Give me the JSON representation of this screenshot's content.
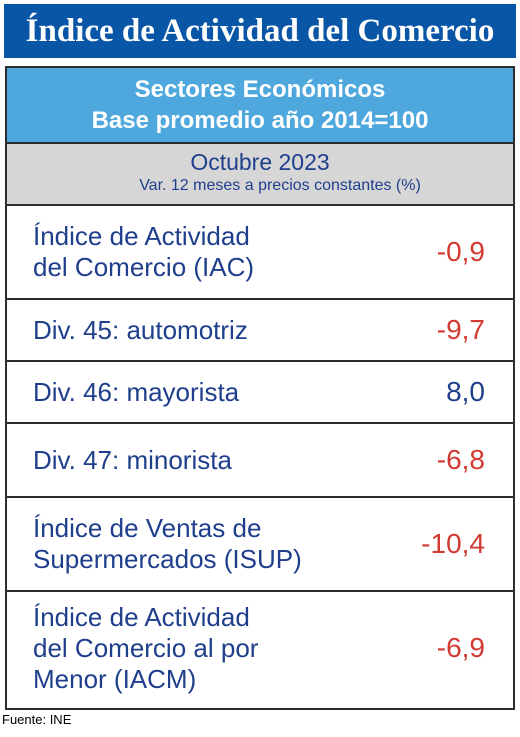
{
  "title": "Índice de Actividad del Comercio",
  "subheader": {
    "line1": "Sectores Económicos",
    "line2": "Base promedio año 2014=100"
  },
  "period": {
    "month": "Octubre 2023",
    "note": "Var. 12 meses a precios constantes (%)"
  },
  "rows": [
    {
      "label": "Índice de Actividad\ndel Comercio (IAC)",
      "value": "-0,9",
      "sign": "negative"
    },
    {
      "label": "Div. 45: automotriz",
      "value": "-9,7",
      "sign": "negative"
    },
    {
      "label": "Div. 46: mayorista",
      "value": "8,0",
      "sign": "positive"
    },
    {
      "label": "Div. 47: minorista",
      "value": "-6,8",
      "sign": "negative"
    },
    {
      "label": "Índice de Ventas de\nSupermercados (ISUP)",
      "value": "-10,4",
      "sign": "negative"
    },
    {
      "label": "Índice de Actividad\ndel Comercio al por\nMenor (IACM)",
      "value": "-6,9",
      "sign": "negative"
    }
  ],
  "colors": {
    "title_bg": "#0a56a6",
    "subheader_bg": "#4fa8dd",
    "period_bg": "#d6d6d6",
    "label_text": "#1f3f8c",
    "negative": "#d23a32",
    "positive": "#1f3f8c"
  },
  "source": "Fuente: INE"
}
